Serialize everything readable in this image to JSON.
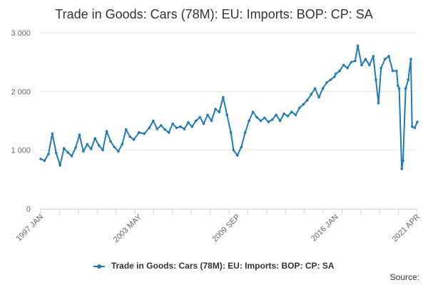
{
  "chart_data": {
    "type": "line",
    "title": "Trade in Goods: Cars (78M): EU: Imports: BOP: CP: SA",
    "xlabel": "",
    "ylabel": "",
    "ylim": [
      0,
      3000
    ],
    "yticks": [
      "0",
      "1 000",
      "2 000",
      "3 000"
    ],
    "xticks": [
      "1997 JAN",
      "2003 MAY",
      "2009 SEP",
      "2016 JAN",
      "2021 APR"
    ],
    "grid": true,
    "legend_position": "bottom",
    "color": "#1f7bb6",
    "source_label": "Source:",
    "series": [
      {
        "name": "Trade in Goods: Cars (78M): EU: Imports: BOP: CP: SA",
        "points": [
          [
            "1997-01",
            850
          ],
          [
            "1997-04",
            820
          ],
          [
            "1997-07",
            930
          ],
          [
            "1997-10",
            1280
          ],
          [
            "1998-01",
            950
          ],
          [
            "1998-04",
            740
          ],
          [
            "1998-07",
            1030
          ],
          [
            "1998-10",
            960
          ],
          [
            "1999-01",
            900
          ],
          [
            "1999-04",
            1040
          ],
          [
            "1999-07",
            1260
          ],
          [
            "1999-10",
            980
          ],
          [
            "2000-01",
            1100
          ],
          [
            "2000-04",
            1020
          ],
          [
            "2000-07",
            1200
          ],
          [
            "2000-10",
            1080
          ],
          [
            "2001-01",
            1000
          ],
          [
            "2001-04",
            1320
          ],
          [
            "2001-07",
            1150
          ],
          [
            "2001-10",
            1050
          ],
          [
            "2002-01",
            980
          ],
          [
            "2002-04",
            1100
          ],
          [
            "2002-07",
            1350
          ],
          [
            "2002-10",
            1230
          ],
          [
            "2003-01",
            1180
          ],
          [
            "2003-05",
            1300
          ],
          [
            "2003-09",
            1280
          ],
          [
            "2004-01",
            1380
          ],
          [
            "2004-04",
            1500
          ],
          [
            "2004-07",
            1360
          ],
          [
            "2004-10",
            1420
          ],
          [
            "2005-01",
            1350
          ],
          [
            "2005-04",
            1300
          ],
          [
            "2005-07",
            1450
          ],
          [
            "2005-10",
            1380
          ],
          [
            "2006-01",
            1400
          ],
          [
            "2006-04",
            1360
          ],
          [
            "2006-07",
            1470
          ],
          [
            "2006-10",
            1400
          ],
          [
            "2007-01",
            1500
          ],
          [
            "2007-04",
            1560
          ],
          [
            "2007-07",
            1450
          ],
          [
            "2007-10",
            1600
          ],
          [
            "2008-01",
            1500
          ],
          [
            "2008-04",
            1700
          ],
          [
            "2008-07",
            1650
          ],
          [
            "2008-10",
            1900
          ],
          [
            "2009-01",
            1600
          ],
          [
            "2009-04",
            1300
          ],
          [
            "2009-06",
            1000
          ],
          [
            "2009-09",
            910
          ],
          [
            "2009-12",
            1050
          ],
          [
            "2010-03",
            1300
          ],
          [
            "2010-06",
            1500
          ],
          [
            "2010-09",
            1650
          ],
          [
            "2010-12",
            1560
          ],
          [
            "2011-03",
            1500
          ],
          [
            "2011-06",
            1550
          ],
          [
            "2011-09",
            1480
          ],
          [
            "2011-12",
            1520
          ],
          [
            "2012-03",
            1600
          ],
          [
            "2012-06",
            1500
          ],
          [
            "2012-09",
            1620
          ],
          [
            "2012-12",
            1580
          ],
          [
            "2013-03",
            1650
          ],
          [
            "2013-06",
            1600
          ],
          [
            "2013-09",
            1720
          ],
          [
            "2013-12",
            1780
          ],
          [
            "2014-03",
            1850
          ],
          [
            "2014-06",
            1950
          ],
          [
            "2014-09",
            2050
          ],
          [
            "2014-12",
            1900
          ],
          [
            "2015-03",
            2050
          ],
          [
            "2015-06",
            2150
          ],
          [
            "2015-09",
            2200
          ],
          [
            "2015-12",
            2250
          ],
          [
            "2016-01",
            2300
          ],
          [
            "2016-04",
            2350
          ],
          [
            "2016-07",
            2450
          ],
          [
            "2016-10",
            2400
          ],
          [
            "2017-01",
            2500
          ],
          [
            "2017-04",
            2520
          ],
          [
            "2017-06",
            2780
          ],
          [
            "2017-09",
            2450
          ],
          [
            "2017-12",
            2550
          ],
          [
            "2018-03",
            2450
          ],
          [
            "2018-06",
            2600
          ],
          [
            "2018-08",
            2200
          ],
          [
            "2018-10",
            1800
          ],
          [
            "2018-12",
            2400
          ],
          [
            "2019-03",
            2550
          ],
          [
            "2019-06",
            2600
          ],
          [
            "2019-09",
            2350
          ],
          [
            "2019-12",
            2350
          ],
          [
            "2020-01",
            2100
          ],
          [
            "2020-02",
            2050
          ],
          [
            "2020-04",
            680
          ],
          [
            "2020-05",
            820
          ],
          [
            "2020-07",
            2050
          ],
          [
            "2020-09",
            2200
          ],
          [
            "2020-11",
            2550
          ],
          [
            "2020-12",
            1400
          ],
          [
            "2021-02",
            1380
          ],
          [
            "2021-04",
            1480
          ]
        ]
      }
    ]
  }
}
